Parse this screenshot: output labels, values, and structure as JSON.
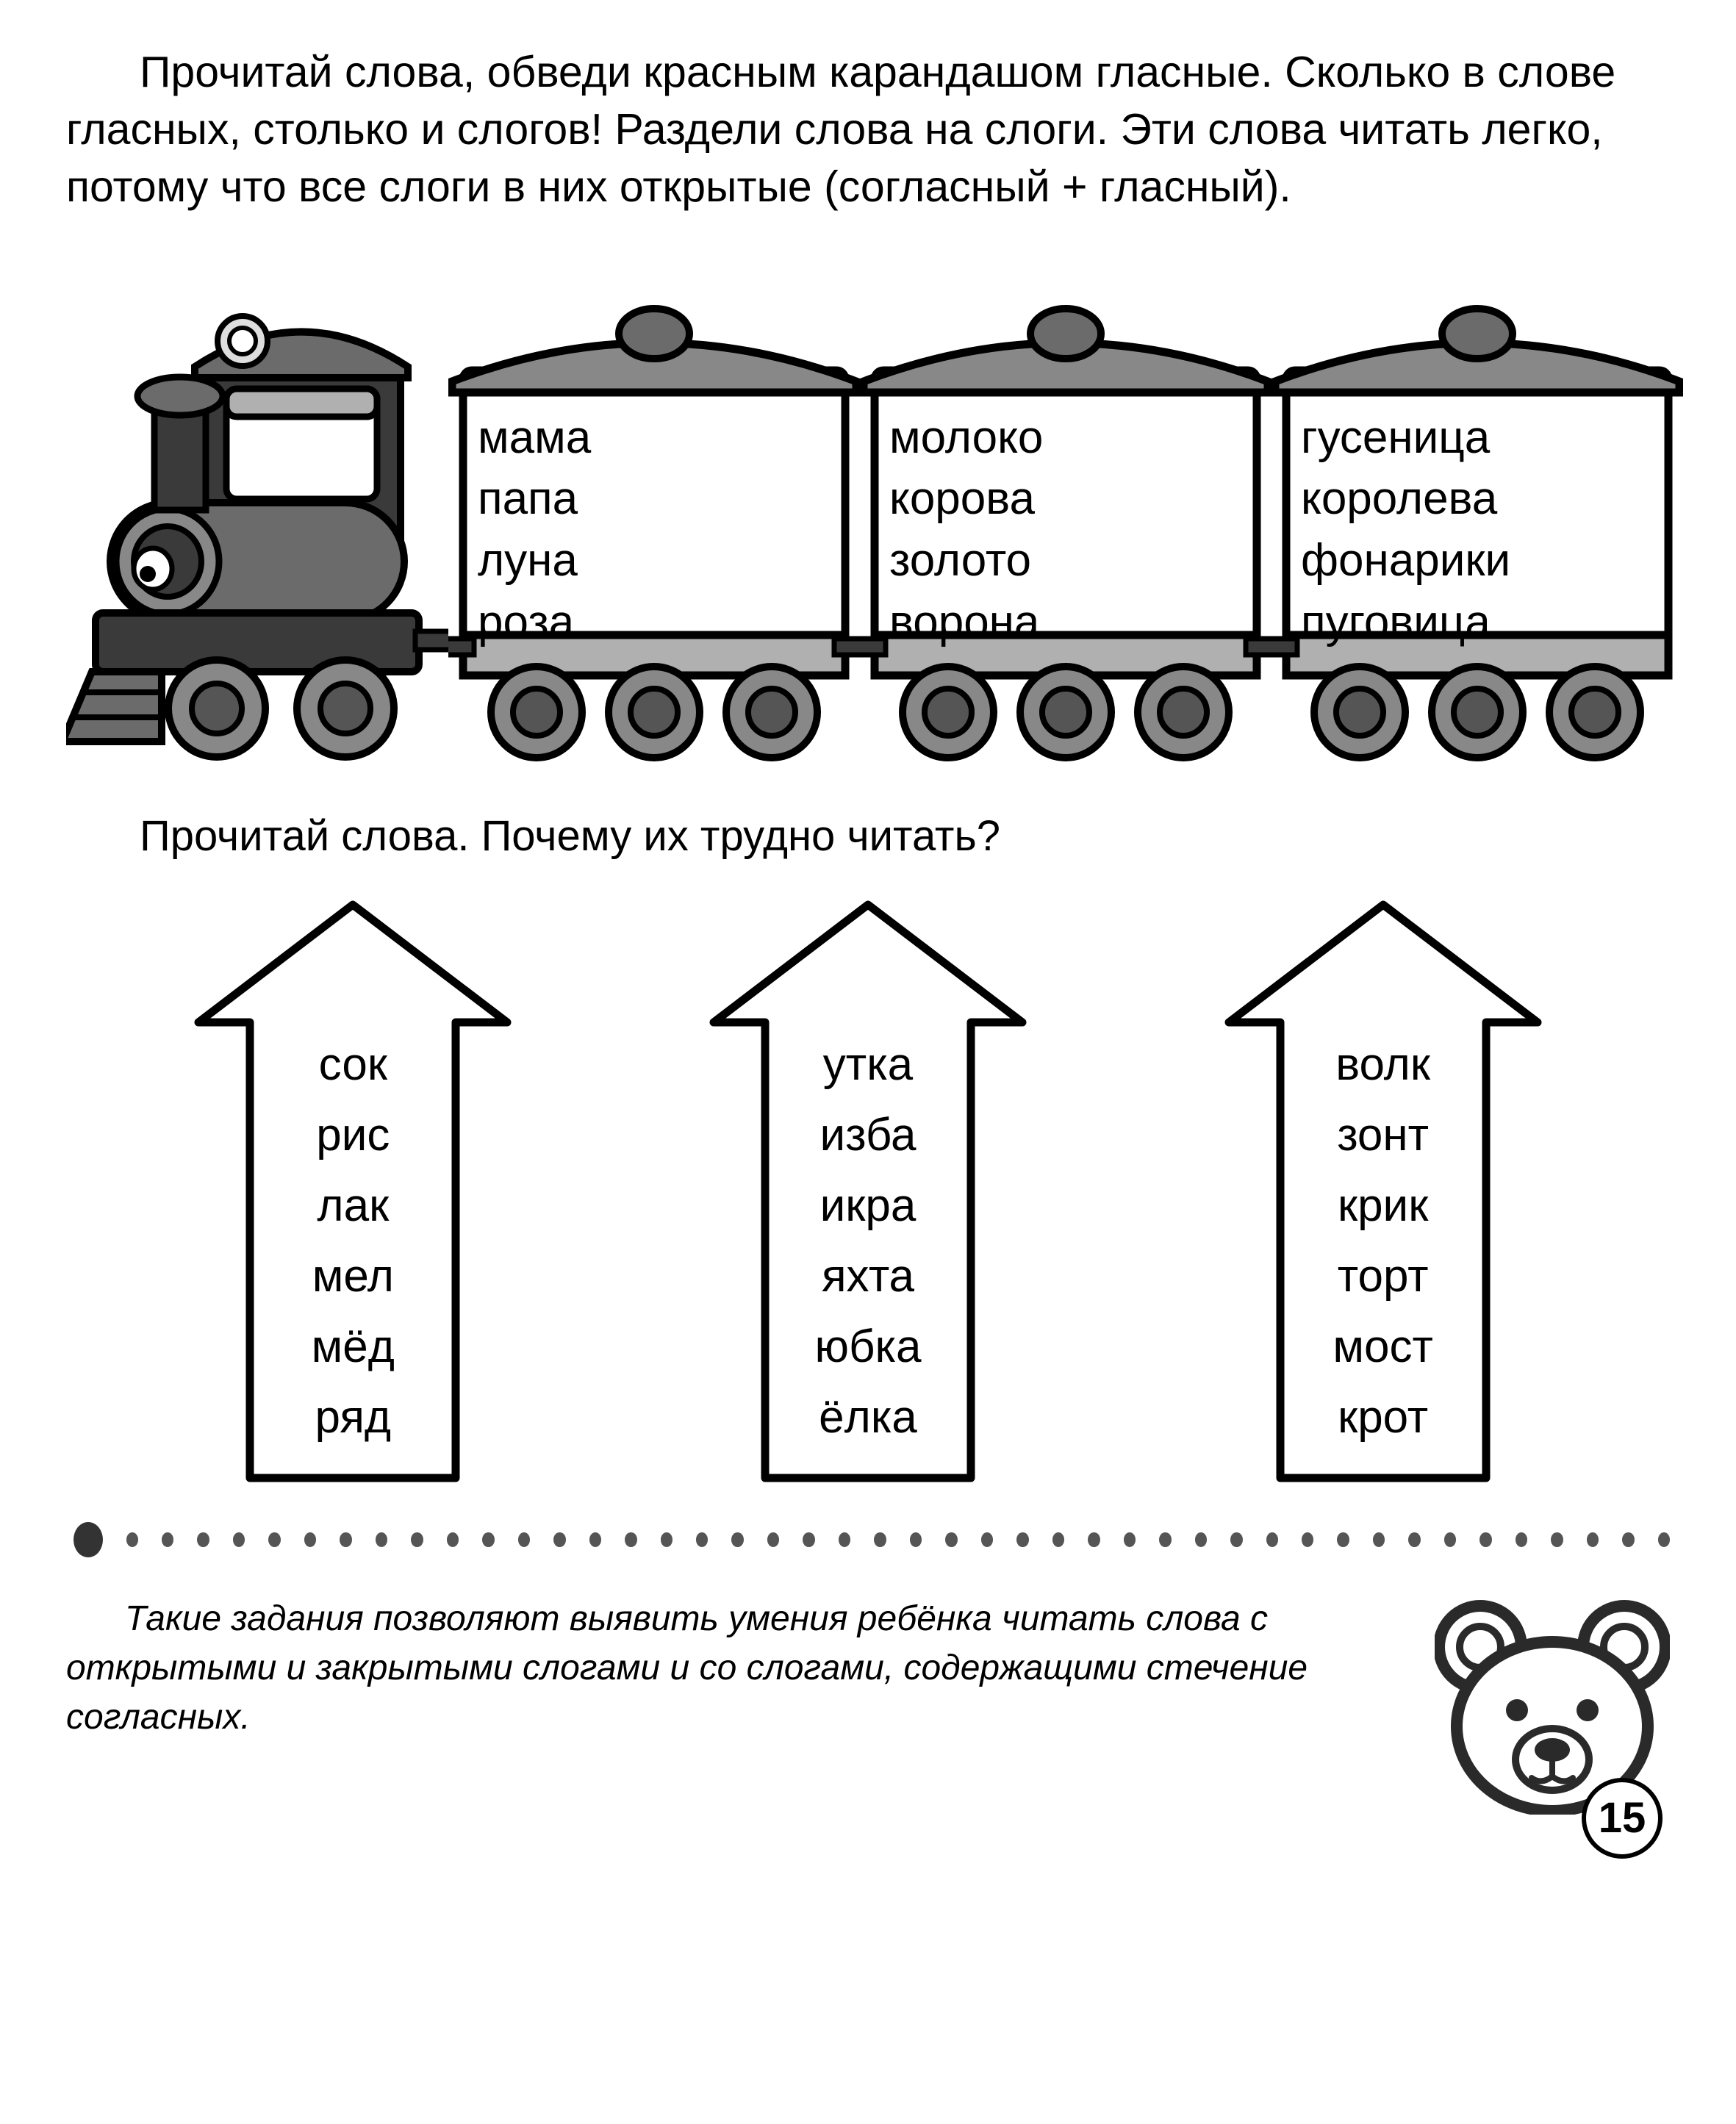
{
  "instruction1": "Прочитай слова, обведи красным карандашом гласные. Сколько в слове гласных, столько и слогов! Раздели слова на слоги. Эти слова читать легко, потому что все слоги в них открытые (согласный + гласный).",
  "instruction2": "Прочитай слова. Почему их трудно читать?",
  "train": {
    "wagons": [
      {
        "words": [
          "мама",
          "папа",
          "луна",
          "роза"
        ]
      },
      {
        "words": [
          "молоко",
          "корова",
          "золото",
          "ворона"
        ]
      },
      {
        "words": [
          "гусеница",
          "королева",
          "фонарики",
          "пуговица"
        ]
      }
    ],
    "colors": {
      "outline": "#000000",
      "dark": "#3a3a3a",
      "mid": "#6b6b6b",
      "light": "#b0b0b0",
      "wheel_ring": "#888888",
      "bg": "#ffffff"
    }
  },
  "arrows": [
    {
      "words": [
        "сок",
        "рис",
        "лак",
        "мел",
        "мёд",
        "ряд"
      ]
    },
    {
      "words": [
        "утка",
        "изба",
        "икра",
        "яхта",
        "юбка",
        "ёлка"
      ]
    },
    {
      "words": [
        "волк",
        "зонт",
        "крик",
        "торт",
        "мост",
        "крот"
      ]
    }
  ],
  "arrow_style": {
    "stroke": "#000000",
    "stroke_width": 11,
    "fill": "#ffffff"
  },
  "divider": {
    "big_dot_color": "#333333",
    "dot_color": "#555555",
    "count": 44
  },
  "footer_note": "Такие задания позволяют выявить умения ребёнка читать слова с открытыми и закрытыми слогами и со слогами, содержащими стечение согласных.",
  "bear_colors": {
    "outline": "#2a2a2a",
    "face": "#ffffff",
    "inner_ear": "#ffffff",
    "nose": "#2a2a2a"
  },
  "page_number": "15"
}
